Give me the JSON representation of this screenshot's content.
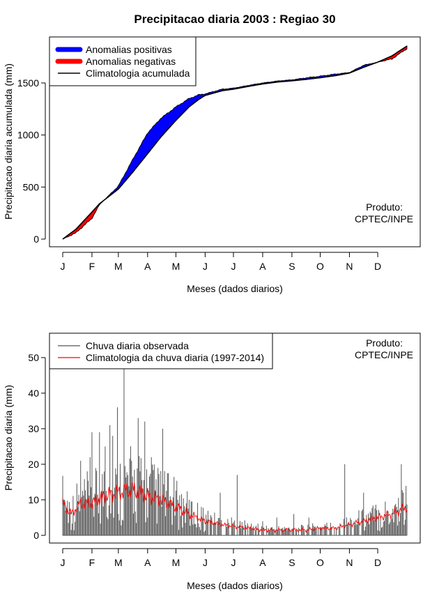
{
  "title": "Precipitacao diaria 2003 : Regiao 30",
  "chart_data": [
    {
      "type": "area",
      "name": "accumulated",
      "xlabel": "Meses (dados diarios)",
      "ylabel": "Precipitacao diaria acumulada (mm)",
      "xlim": [
        1,
        366
      ],
      "ylim": [
        0,
        1900
      ],
      "month_labels": [
        "J",
        "F",
        "M",
        "A",
        "M",
        "J",
        "J",
        "A",
        "S",
        "O",
        "N",
        "D"
      ],
      "month_start_days": [
        1,
        32,
        60,
        91,
        121,
        152,
        182,
        213,
        244,
        274,
        305,
        335
      ],
      "yticks": [
        0,
        500,
        1000,
        1500
      ],
      "legend": {
        "position": "top-left",
        "entries": [
          {
            "label": "Anomalias positivas",
            "color": "#0000ff"
          },
          {
            "label": "Anomalias negativas",
            "color": "#ff0000"
          },
          {
            "label": "Climatologia acumulada",
            "color": "#000000"
          }
        ]
      },
      "annotation": [
        "Produto:",
        "CPTEC/INPE"
      ],
      "series": [
        {
          "name": "Climatologia acumulada",
          "x": [
            1,
            15,
            32,
            40,
            50,
            60,
            75,
            91,
            105,
            121,
            135,
            145,
            152,
            170,
            182,
            200,
            213,
            230,
            244,
            260,
            274,
            290,
            305,
            320,
            335,
            350,
            366
          ],
          "y": [
            0,
            95,
            260,
            340,
            410,
            480,
            640,
            820,
            980,
            1140,
            1270,
            1340,
            1380,
            1425,
            1440,
            1470,
            1490,
            1510,
            1520,
            1535,
            1550,
            1570,
            1595,
            1650,
            1700,
            1760,
            1855
          ]
        },
        {
          "name": "Observada acumulada",
          "x": [
            1,
            15,
            32,
            40,
            50,
            60,
            75,
            91,
            105,
            121,
            135,
            145,
            152,
            170,
            182,
            200,
            213,
            230,
            244,
            260,
            274,
            290,
            305,
            320,
            335,
            350,
            366
          ],
          "y": [
            0,
            60,
            200,
            330,
            420,
            510,
            760,
            1020,
            1160,
            1270,
            1350,
            1385,
            1395,
            1440,
            1450,
            1480,
            1500,
            1520,
            1530,
            1550,
            1565,
            1585,
            1600,
            1670,
            1700,
            1730,
            1830
          ]
        }
      ]
    },
    {
      "type": "bar",
      "name": "daily",
      "xlabel": "Meses (dados diarios)",
      "ylabel": "Precipitacao diaria (mm)",
      "xlim": [
        1,
        366
      ],
      "ylim": [
        0,
        55
      ],
      "month_labels": [
        "J",
        "F",
        "M",
        "A",
        "M",
        "J",
        "J",
        "A",
        "S",
        "O",
        "N",
        "D"
      ],
      "month_start_days": [
        1,
        32,
        60,
        91,
        121,
        152,
        182,
        213,
        244,
        274,
        305,
        335
      ],
      "yticks": [
        0,
        10,
        20,
        30,
        40,
        50
      ],
      "legend": {
        "position": "top-left",
        "entries": [
          {
            "label": "Chuva diaria observada",
            "color": "#555555"
          },
          {
            "label": "Climatologia da chuva diaria (1997-2014)",
            "color": "#ff0000"
          }
        ]
      },
      "annotation": [
        "Produto:",
        "CPTEC/INPE"
      ],
      "peaks": [
        {
          "day": 2,
          "value": 10
        },
        {
          "day": 20,
          "value": 21
        },
        {
          "day": 30,
          "value": 22
        },
        {
          "day": 32,
          "value": 29
        },
        {
          "day": 40,
          "value": 29
        },
        {
          "day": 46,
          "value": 25
        },
        {
          "day": 51,
          "value": 31
        },
        {
          "day": 54,
          "value": 28
        },
        {
          "day": 59,
          "value": 36
        },
        {
          "day": 66,
          "value": 47
        },
        {
          "day": 74,
          "value": 21
        },
        {
          "day": 81,
          "value": 33
        },
        {
          "day": 88,
          "value": 32
        },
        {
          "day": 95,
          "value": 22
        },
        {
          "day": 107,
          "value": 30
        },
        {
          "day": 115,
          "value": 11
        },
        {
          "day": 123,
          "value": 10
        },
        {
          "day": 132,
          "value": 9
        },
        {
          "day": 148,
          "value": 8
        },
        {
          "day": 168,
          "value": 12
        },
        {
          "day": 186,
          "value": 17
        },
        {
          "day": 213,
          "value": 4
        },
        {
          "day": 228,
          "value": 5
        },
        {
          "day": 246,
          "value": 6
        },
        {
          "day": 262,
          "value": 5
        },
        {
          "day": 300,
          "value": 20
        },
        {
          "day": 320,
          "value": 12
        },
        {
          "day": 345,
          "value": 6
        },
        {
          "day": 360,
          "value": 20
        },
        {
          "day": 362,
          "value": 12
        }
      ],
      "climatology": {
        "x": [
          1,
          10,
          20,
          32,
          45,
          60,
          75,
          91,
          105,
          121,
          135,
          152,
          170,
          182,
          200,
          213,
          230,
          244,
          260,
          274,
          290,
          305,
          320,
          335,
          350,
          366
        ],
        "y": [
          9,
          6,
          9,
          9,
          11,
          12,
          13,
          11,
          10,
          8,
          6,
          4,
          3,
          2.5,
          2,
          1.5,
          1.5,
          1.5,
          1.5,
          2,
          2,
          3,
          4,
          5,
          6,
          8
        ]
      }
    }
  ]
}
